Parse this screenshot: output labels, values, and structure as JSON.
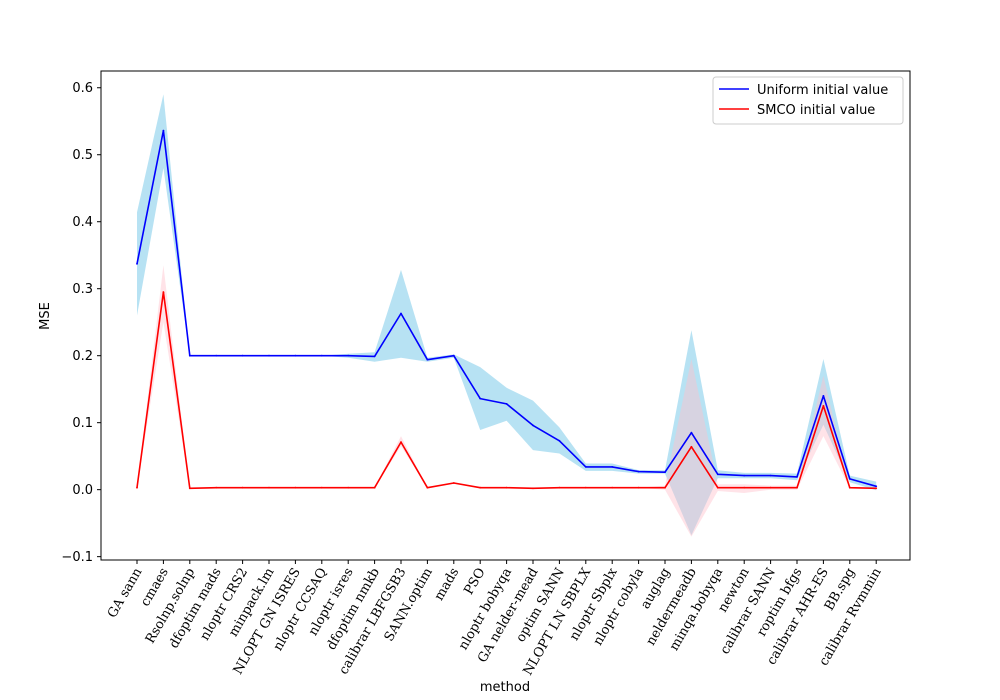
{
  "chart_data": {
    "type": "line",
    "title": "",
    "xlabel": "method",
    "ylabel": "MSE",
    "ylim": [
      -0.105,
      0.625
    ],
    "yticks": [
      -0.1,
      0.0,
      0.1,
      0.2,
      0.3,
      0.4,
      0.5,
      0.6
    ],
    "ytick_labels": [
      "−0.1",
      "0.0",
      "0.1",
      "0.2",
      "0.3",
      "0.4",
      "0.5",
      "0.6"
    ],
    "grid": false,
    "legend_position": "top-right",
    "categories": [
      "GA sann",
      "cmaes",
      "Rsolnp.solnp",
      "dfoptim mads",
      "nloptr CRS2",
      "minpack.lm",
      "NLOPT GN ISRES",
      "nloptr CCSAQ",
      "nloptr isres",
      "dfoptim nmkb",
      "calibrar LBFGSB3",
      "SANN.optim",
      "mads",
      "PSO",
      "nloptr bobyqa",
      "GA nelder-mead",
      "optim SANN",
      "NLOPT LN SBPLX",
      "nloptr Sbplx",
      "nloptr cobyla",
      "auglag",
      "neldermeadb",
      "minqa.bobyqa",
      "newton",
      "calibrar SANN",
      "roptim bfgs",
      "calibrar AHR-ES",
      "BB.spg",
      "calibrar Rvmmin"
    ],
    "series": [
      {
        "name": "Uniform initial value",
        "color": "#0000ff",
        "band_color": "#87ceeb",
        "values": [
          0.337,
          0.536,
          0.2,
          0.2,
          0.2,
          0.2,
          0.2,
          0.2,
          0.2,
          0.199,
          0.263,
          0.194,
          0.2,
          0.136,
          0.128,
          0.096,
          0.073,
          0.034,
          0.034,
          0.027,
          0.026,
          0.085,
          0.023,
          0.021,
          0.021,
          0.019,
          0.14,
          0.016,
          0.005
        ],
        "lower": [
          0.26,
          0.48,
          0.2,
          0.2,
          0.2,
          0.2,
          0.2,
          0.2,
          0.197,
          0.191,
          0.197,
          0.191,
          0.197,
          0.089,
          0.103,
          0.059,
          0.054,
          0.028,
          0.028,
          0.024,
          0.024,
          -0.068,
          0.017,
          0.017,
          0.017,
          0.014,
          0.097,
          0.011,
          -0.001
        ],
        "upper": [
          0.414,
          0.59,
          0.2,
          0.2,
          0.2,
          0.2,
          0.2,
          0.2,
          0.203,
          0.205,
          0.328,
          0.197,
          0.202,
          0.183,
          0.152,
          0.133,
          0.093,
          0.039,
          0.039,
          0.029,
          0.029,
          0.238,
          0.029,
          0.025,
          0.025,
          0.024,
          0.195,
          0.021,
          0.012
        ]
      },
      {
        "name": "SMCO initial value",
        "color": "#ff0000",
        "band_color": "#ffc0cb",
        "values": [
          0.003,
          0.295,
          0.002,
          0.003,
          0.003,
          0.003,
          0.003,
          0.003,
          0.003,
          0.003,
          0.071,
          0.003,
          0.01,
          0.003,
          0.003,
          0.002,
          0.003,
          0.003,
          0.003,
          0.003,
          0.003,
          0.064,
          0.003,
          0.003,
          0.003,
          0.003,
          0.125,
          0.003,
          0.002
        ],
        "lower": [
          0.003,
          0.25,
          0.002,
          0.003,
          0.003,
          0.003,
          0.003,
          0.003,
          0.003,
          0.003,
          0.065,
          0.003,
          0.009,
          0.003,
          0.003,
          0.002,
          0.003,
          0.003,
          0.003,
          0.003,
          0.0,
          -0.07,
          -0.002,
          -0.005,
          0.0,
          0.0,
          0.08,
          0.002,
          0.001
        ],
        "upper": [
          0.003,
          0.335,
          0.002,
          0.003,
          0.003,
          0.003,
          0.003,
          0.003,
          0.003,
          0.003,
          0.08,
          0.003,
          0.011,
          0.003,
          0.003,
          0.002,
          0.003,
          0.003,
          0.003,
          0.003,
          0.006,
          0.195,
          0.008,
          0.008,
          0.006,
          0.006,
          0.17,
          0.004,
          0.003
        ]
      }
    ]
  }
}
